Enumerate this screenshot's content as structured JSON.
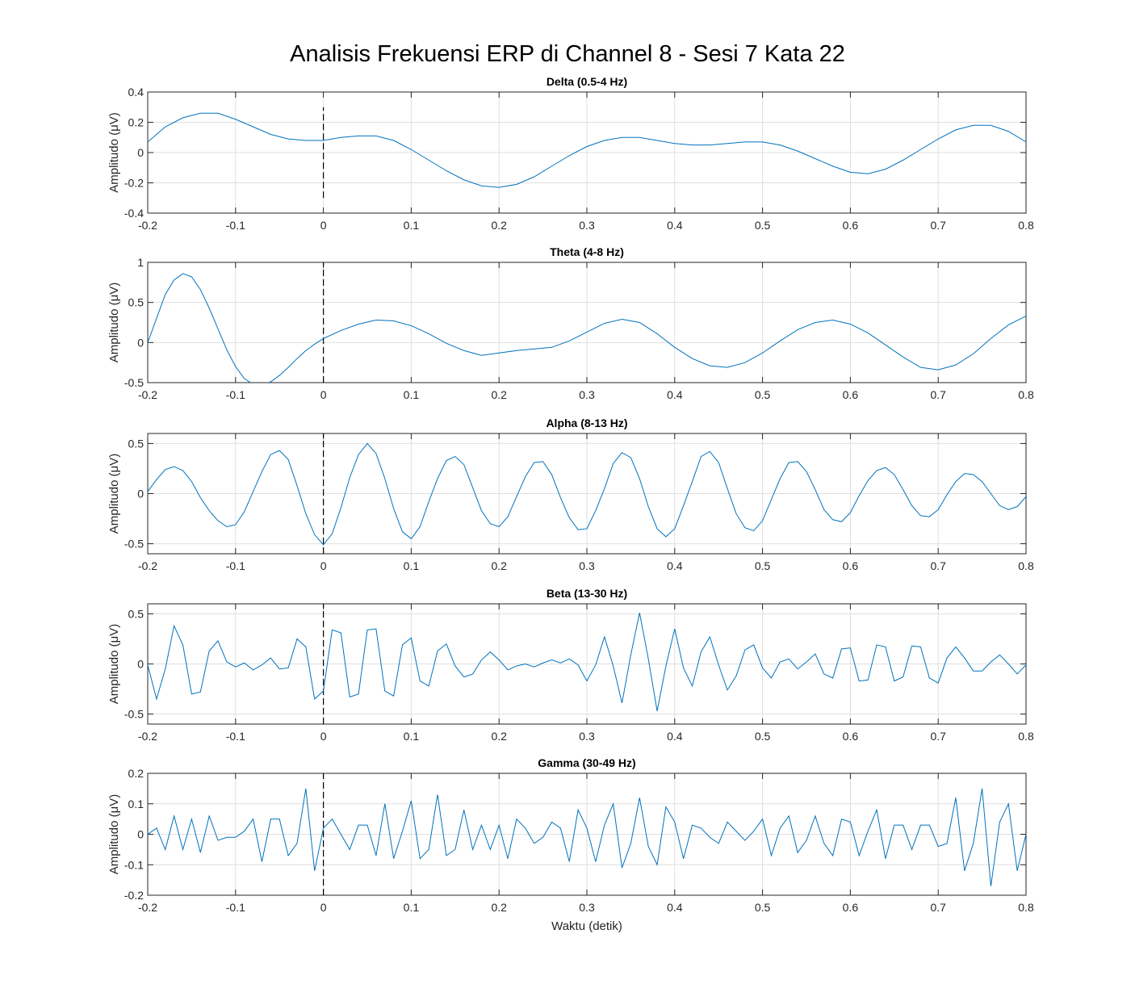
{
  "figure": {
    "title": "Analisis Frekuensi ERP di Channel 8 - Sesi 7 Kata 22"
  },
  "colors": {
    "line": "#0072bd",
    "marker": "#000000",
    "grid": "#dfdfdf",
    "axes": "#262626"
  },
  "chart_data": [
    {
      "type": "line",
      "title": "Delta (0.5-4 Hz)",
      "ylabel": "Amplitudo (μV)",
      "xlabel": "",
      "xlim": [
        -0.2,
        0.8
      ],
      "ylim": [
        -0.4,
        0.4
      ],
      "xticks": [
        "-0.2",
        "-0.1",
        "0",
        "0.1",
        "0.2",
        "0.3",
        "0.4",
        "0.5",
        "0.6",
        "0.7",
        "0.8"
      ],
      "yticks": [
        "-0.4",
        "-0.2",
        "0",
        "0.2",
        "0.4"
      ],
      "grid": true,
      "stimulus_line": {
        "x": 0,
        "y": [
          -0.3,
          0.3
        ]
      },
      "x": [
        -0.2,
        -0.18,
        -0.16,
        -0.14,
        -0.12,
        -0.1,
        -0.08,
        -0.06,
        -0.04,
        -0.02,
        0,
        0.02,
        0.04,
        0.06,
        0.08,
        0.1,
        0.12,
        0.14,
        0.16,
        0.18,
        0.2,
        0.22,
        0.24,
        0.26,
        0.28,
        0.3,
        0.32,
        0.34,
        0.36,
        0.38,
        0.4,
        0.42,
        0.44,
        0.46,
        0.48,
        0.5,
        0.52,
        0.54,
        0.56,
        0.58,
        0.6,
        0.62,
        0.64,
        0.66,
        0.68,
        0.7,
        0.72,
        0.74,
        0.76,
        0.78,
        0.8
      ],
      "values": [
        0.07,
        0.17,
        0.23,
        0.26,
        0.26,
        0.22,
        0.17,
        0.12,
        0.09,
        0.08,
        0.08,
        0.1,
        0.11,
        0.11,
        0.08,
        0.02,
        -0.05,
        -0.12,
        -0.18,
        -0.22,
        -0.23,
        -0.21,
        -0.16,
        -0.09,
        -0.02,
        0.04,
        0.08,
        0.1,
        0.1,
        0.08,
        0.06,
        0.05,
        0.05,
        0.06,
        0.07,
        0.07,
        0.05,
        0.01,
        -0.04,
        -0.09,
        -0.13,
        -0.14,
        -0.11,
        -0.05,
        0.02,
        0.09,
        0.15,
        0.18,
        0.18,
        0.14,
        0.07
      ]
    },
    {
      "type": "line",
      "title": "Theta (4-8 Hz)",
      "ylabel": "Amplitudo (μV)",
      "xlabel": "",
      "xlim": [
        -0.2,
        0.8
      ],
      "ylim": [
        -0.5,
        1
      ],
      "xticks": [
        "-0.2",
        "-0.1",
        "0",
        "0.1",
        "0.2",
        "0.3",
        "0.4",
        "0.5",
        "0.6",
        "0.7",
        "0.8"
      ],
      "yticks": [
        "-0.5",
        "0",
        "0.5",
        "1"
      ],
      "grid": true,
      "stimulus_line": {
        "x": 0,
        "y": [
          -0.5,
          1
        ]
      },
      "x": [
        -0.2,
        -0.19,
        -0.18,
        -0.17,
        -0.16,
        -0.15,
        -0.14,
        -0.13,
        -0.12,
        -0.11,
        -0.1,
        -0.09,
        -0.08,
        -0.07,
        -0.06,
        -0.05,
        -0.04,
        -0.03,
        -0.02,
        -0.01,
        0,
        0.02,
        0.04,
        0.06,
        0.08,
        0.1,
        0.12,
        0.14,
        0.16,
        0.18,
        0.2,
        0.22,
        0.24,
        0.26,
        0.28,
        0.3,
        0.32,
        0.34,
        0.36,
        0.38,
        0.4,
        0.42,
        0.44,
        0.46,
        0.48,
        0.5,
        0.52,
        0.54,
        0.56,
        0.58,
        0.6,
        0.62,
        0.64,
        0.66,
        0.68,
        0.7,
        0.72,
        0.74,
        0.76,
        0.78,
        0.8
      ],
      "values": [
        0.0,
        0.3,
        0.6,
        0.78,
        0.86,
        0.82,
        0.66,
        0.43,
        0.17,
        -0.09,
        -0.3,
        -0.45,
        -0.52,
        -0.53,
        -0.49,
        -0.41,
        -0.31,
        -0.2,
        -0.1,
        -0.02,
        0.05,
        0.15,
        0.23,
        0.28,
        0.27,
        0.21,
        0.11,
        -0.01,
        -0.1,
        -0.16,
        -0.13,
        -0.1,
        -0.08,
        -0.06,
        0.02,
        0.13,
        0.24,
        0.29,
        0.25,
        0.11,
        -0.06,
        -0.2,
        -0.29,
        -0.31,
        -0.25,
        -0.13,
        0.02,
        0.16,
        0.25,
        0.28,
        0.23,
        0.12,
        -0.03,
        -0.18,
        -0.31,
        -0.34,
        -0.28,
        -0.14,
        0.05,
        0.22,
        0.33
      ]
    },
    {
      "type": "line",
      "title": "Alpha (8-13 Hz)",
      "ylabel": "Amplitudo (μV)",
      "xlabel": "",
      "xlim": [
        -0.2,
        0.8
      ],
      "ylim": [
        -0.6,
        0.6
      ],
      "xticks": [
        "-0.2",
        "-0.1",
        "0",
        "0.1",
        "0.2",
        "0.3",
        "0.4",
        "0.5",
        "0.6",
        "0.7",
        "0.8"
      ],
      "yticks": [
        "-0.5",
        "0",
        "0.5"
      ],
      "grid": true,
      "stimulus_line": {
        "x": 0,
        "y": [
          -0.6,
          0.6
        ]
      },
      "x": [
        -0.2,
        -0.19,
        -0.18,
        -0.17,
        -0.16,
        -0.15,
        -0.14,
        -0.13,
        -0.12,
        -0.11,
        -0.1,
        -0.09,
        -0.08,
        -0.07,
        -0.06,
        -0.05,
        -0.04,
        -0.03,
        -0.02,
        -0.01,
        0,
        0.01,
        0.02,
        0.03,
        0.04,
        0.05,
        0.06,
        0.07,
        0.08,
        0.09,
        0.1,
        0.11,
        0.12,
        0.13,
        0.14,
        0.15,
        0.16,
        0.17,
        0.18,
        0.19,
        0.2,
        0.21,
        0.22,
        0.23,
        0.24,
        0.25,
        0.26,
        0.27,
        0.28,
        0.29,
        0.3,
        0.31,
        0.32,
        0.33,
        0.34,
        0.35,
        0.36,
        0.37,
        0.38,
        0.39,
        0.4,
        0.41,
        0.42,
        0.43,
        0.44,
        0.45,
        0.46,
        0.47,
        0.48,
        0.49,
        0.5,
        0.51,
        0.52,
        0.53,
        0.54,
        0.55,
        0.56,
        0.57,
        0.58,
        0.59,
        0.6,
        0.61,
        0.62,
        0.63,
        0.64,
        0.65,
        0.66,
        0.67,
        0.68,
        0.69,
        0.7,
        0.71,
        0.72,
        0.73,
        0.74,
        0.75,
        0.76,
        0.77,
        0.78,
        0.79,
        0.8
      ],
      "values": [
        0.02,
        0.14,
        0.24,
        0.27,
        0.23,
        0.12,
        -0.04,
        -0.17,
        -0.27,
        -0.33,
        -0.31,
        -0.18,
        0.02,
        0.22,
        0.39,
        0.43,
        0.34,
        0.08,
        -0.2,
        -0.41,
        -0.51,
        -0.4,
        -0.14,
        0.16,
        0.39,
        0.5,
        0.4,
        0.15,
        -0.15,
        -0.38,
        -0.45,
        -0.33,
        -0.08,
        0.15,
        0.33,
        0.37,
        0.29,
        0.06,
        -0.17,
        -0.3,
        -0.33,
        -0.23,
        -0.03,
        0.17,
        0.31,
        0.32,
        0.19,
        -0.04,
        -0.24,
        -0.36,
        -0.35,
        -0.17,
        0.05,
        0.3,
        0.41,
        0.36,
        0.15,
        -0.13,
        -0.35,
        -0.43,
        -0.35,
        -0.12,
        0.12,
        0.37,
        0.42,
        0.31,
        0.05,
        -0.2,
        -0.34,
        -0.37,
        -0.27,
        -0.06,
        0.15,
        0.31,
        0.32,
        0.22,
        0.04,
        -0.16,
        -0.26,
        -0.28,
        -0.19,
        -0.02,
        0.13,
        0.23,
        0.26,
        0.19,
        0.04,
        -0.12,
        -0.22,
        -0.23,
        -0.16,
        -0.01,
        0.12,
        0.2,
        0.19,
        0.12,
        0.0,
        -0.12,
        -0.16,
        -0.13,
        -0.03
      ]
    },
    {
      "type": "line",
      "title": "Beta (13-30 Hz)",
      "ylabel": "Amplitudo (μV)",
      "xlabel": "",
      "xlim": [
        -0.2,
        0.8
      ],
      "ylim": [
        -0.6,
        0.6
      ],
      "xticks": [
        "-0.2",
        "-0.1",
        "0",
        "0.1",
        "0.2",
        "0.3",
        "0.4",
        "0.5",
        "0.6",
        "0.7",
        "0.8"
      ],
      "yticks": [
        "-0.5",
        "0",
        "0.5"
      ],
      "grid": true,
      "stimulus_line": {
        "x": 0,
        "y": [
          -0.6,
          0.6
        ]
      },
      "x": [
        -0.2,
        -0.19,
        -0.18,
        -0.17,
        -0.16,
        -0.15,
        -0.14,
        -0.13,
        -0.12,
        -0.11,
        -0.1,
        -0.09,
        -0.08,
        -0.07,
        -0.06,
        -0.05,
        -0.04,
        -0.03,
        -0.02,
        -0.01,
        0,
        0.01,
        0.02,
        0.03,
        0.04,
        0.05,
        0.06,
        0.07,
        0.08,
        0.09,
        0.1,
        0.11,
        0.12,
        0.13,
        0.14,
        0.15,
        0.16,
        0.17,
        0.18,
        0.19,
        0.2,
        0.21,
        0.22,
        0.23,
        0.24,
        0.25,
        0.26,
        0.27,
        0.28,
        0.29,
        0.3,
        0.31,
        0.32,
        0.33,
        0.34,
        0.35,
        0.36,
        0.37,
        0.38,
        0.39,
        0.4,
        0.41,
        0.42,
        0.43,
        0.44,
        0.45,
        0.46,
        0.47,
        0.48,
        0.49,
        0.5,
        0.51,
        0.52,
        0.53,
        0.54,
        0.55,
        0.56,
        0.57,
        0.58,
        0.59,
        0.6,
        0.61,
        0.62,
        0.63,
        0.64,
        0.65,
        0.66,
        0.67,
        0.68,
        0.69,
        0.7,
        0.71,
        0.72,
        0.73,
        0.74,
        0.75,
        0.76,
        0.77,
        0.78,
        0.79,
        0.8
      ],
      "values": [
        -0.01,
        -0.35,
        -0.05,
        0.38,
        0.19,
        -0.3,
        -0.28,
        0.13,
        0.23,
        0.02,
        -0.03,
        0.01,
        -0.06,
        -0.01,
        0.06,
        -0.05,
        -0.04,
        0.25,
        0.17,
        -0.35,
        -0.27,
        0.34,
        0.31,
        -0.33,
        -0.3,
        0.34,
        0.35,
        -0.27,
        -0.32,
        0.19,
        0.26,
        -0.17,
        -0.22,
        0.13,
        0.2,
        -0.02,
        -0.13,
        -0.1,
        0.04,
        0.12,
        0.04,
        -0.06,
        -0.02,
        0.0,
        -0.03,
        0.01,
        0.04,
        0.01,
        0.05,
        -0.01,
        -0.17,
        -0.01,
        0.27,
        -0.02,
        -0.39,
        0.09,
        0.51,
        0.05,
        -0.47,
        -0.02,
        0.35,
        -0.04,
        -0.22,
        0.12,
        0.27,
        -0.01,
        -0.26,
        -0.12,
        0.14,
        0.19,
        -0.04,
        -0.14,
        0.02,
        0.05,
        -0.05,
        0.02,
        0.1,
        -0.1,
        -0.14,
        0.15,
        0.16,
        -0.17,
        -0.16,
        0.19,
        0.17,
        -0.17,
        -0.13,
        0.18,
        0.17,
        -0.14,
        -0.19,
        0.06,
        0.17,
        0.06,
        -0.07,
        -0.07,
        0.02,
        0.09,
        0.0,
        -0.1,
        -0.01
      ]
    },
    {
      "type": "line",
      "title": "Gamma (30-49 Hz)",
      "ylabel": "Amplitudo (μV)",
      "xlabel": "Waktu (detik)",
      "xlim": [
        -0.2,
        0.8
      ],
      "ylim": [
        -0.2,
        0.2
      ],
      "xticks": [
        "-0.2",
        "-0.1",
        "0",
        "0.1",
        "0.2",
        "0.3",
        "0.4",
        "0.5",
        "0.6",
        "0.7",
        "0.8"
      ],
      "yticks": [
        "-0.2",
        "-0.1",
        "0",
        "0.1",
        "0.2"
      ],
      "grid": true,
      "stimulus_line": {
        "x": 0,
        "y": [
          -0.2,
          0.2
        ]
      },
      "x": [
        -0.2,
        -0.19,
        -0.18,
        -0.17,
        -0.16,
        -0.15,
        -0.14,
        -0.13,
        -0.12,
        -0.11,
        -0.1,
        -0.09,
        -0.08,
        -0.07,
        -0.06,
        -0.05,
        -0.04,
        -0.03,
        -0.02,
        -0.01,
        0,
        0.01,
        0.02,
        0.03,
        0.04,
        0.05,
        0.06,
        0.07,
        0.08,
        0.09,
        0.1,
        0.11,
        0.12,
        0.13,
        0.14,
        0.15,
        0.16,
        0.17,
        0.18,
        0.19,
        0.2,
        0.21,
        0.22,
        0.23,
        0.24,
        0.25,
        0.26,
        0.27,
        0.28,
        0.29,
        0.3,
        0.31,
        0.32,
        0.33,
        0.34,
        0.35,
        0.36,
        0.37,
        0.38,
        0.39,
        0.4,
        0.41,
        0.42,
        0.43,
        0.44,
        0.45,
        0.46,
        0.47,
        0.48,
        0.49,
        0.5,
        0.51,
        0.52,
        0.53,
        0.54,
        0.55,
        0.56,
        0.57,
        0.58,
        0.59,
        0.6,
        0.61,
        0.62,
        0.63,
        0.64,
        0.65,
        0.66,
        0.67,
        0.68,
        0.69,
        0.7,
        0.71,
        0.72,
        0.73,
        0.74,
        0.75,
        0.76,
        0.77,
        0.78,
        0.79,
        0.8
      ],
      "values": [
        0.0,
        0.02,
        -0.05,
        0.06,
        -0.05,
        0.05,
        -0.06,
        0.06,
        -0.02,
        -0.01,
        -0.01,
        0.01,
        0.05,
        -0.09,
        0.05,
        0.05,
        -0.07,
        -0.03,
        0.15,
        -0.12,
        0.02,
        0.05,
        -0.0,
        -0.05,
        0.03,
        0.03,
        -0.07,
        0.1,
        -0.08,
        0.01,
        0.11,
        -0.08,
        -0.05,
        0.13,
        -0.07,
        -0.05,
        0.08,
        -0.05,
        0.03,
        -0.05,
        0.03,
        -0.08,
        0.05,
        0.02,
        -0.03,
        -0.01,
        0.04,
        0.02,
        -0.09,
        0.08,
        0.02,
        -0.09,
        0.03,
        0.1,
        -0.11,
        -0.03,
        0.12,
        -0.04,
        -0.1,
        0.09,
        0.04,
        -0.08,
        0.03,
        0.02,
        -0.01,
        -0.03,
        0.04,
        0.01,
        -0.02,
        0.01,
        0.05,
        -0.07,
        0.02,
        0.06,
        -0.06,
        -0.02,
        0.06,
        -0.03,
        -0.07,
        0.05,
        0.04,
        -0.07,
        0.01,
        0.08,
        -0.08,
        0.03,
        0.03,
        -0.05,
        0.03,
        0.03,
        -0.04,
        -0.03,
        0.12,
        -0.12,
        -0.03,
        0.15,
        -0.17,
        0.04,
        0.1,
        -0.12,
        -0.0
      ]
    }
  ]
}
